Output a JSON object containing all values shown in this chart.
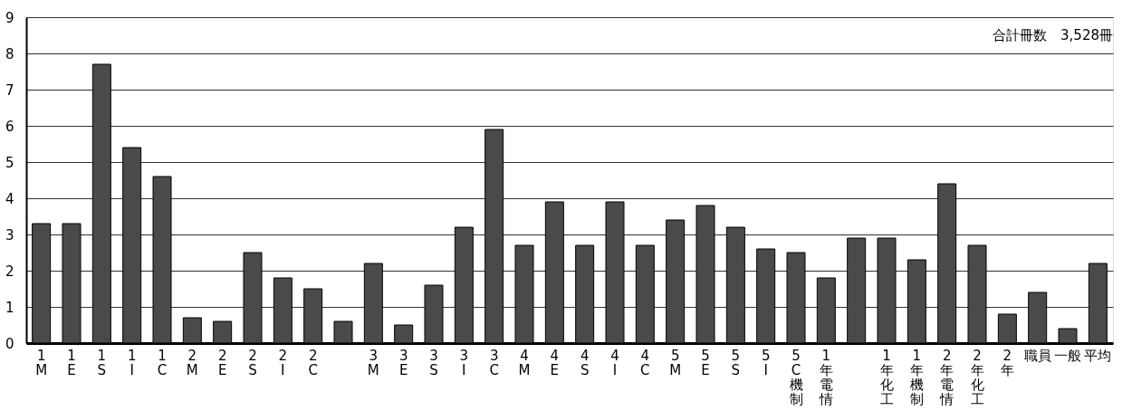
{
  "chart_data": {
    "type": "bar",
    "categories": [
      "1\nM",
      "1\nE",
      "1\nS",
      "1\nI",
      "1\nC",
      "2\nM",
      "2\nE",
      "2\nS",
      "2\nI",
      "2\nC",
      null,
      "3\nM",
      "3\nE",
      "3\nS",
      "3\nI",
      "3\nC",
      "4\nM",
      "4\nE",
      "4\nS",
      "4\nI",
      "4\nC",
      "5\nM",
      "5\nE",
      "5\nS",
      "5\nI",
      "5\nC\n機制",
      "1\n年電情",
      null,
      "1\n年化工",
      "1\n年機制",
      "2\n年電情",
      "2\n年化工",
      "2\n年",
      "職員",
      "一般",
      "平均"
    ],
    "values": [
      3.3,
      3.3,
      7.7,
      5.4,
      4.6,
      0.7,
      0.6,
      2.5,
      1.8,
      1.5,
      0.6,
      2.2,
      0.5,
      1.6,
      3.2,
      5.9,
      2.7,
      3.9,
      2.7,
      3.9,
      2.7,
      3.4,
      3.8,
      3.2,
      2.6,
      2.5,
      1.8,
      2.9,
      2.9,
      2.3,
      4.4,
      2.7,
      0.8,
      1.4,
      0.4,
      2.2
    ],
    "color": "#4a4a4a",
    "ylim": [
      0,
      9
    ],
    "yticks": [
      0,
      1,
      2,
      3,
      4,
      5,
      6,
      7,
      8,
      9
    ],
    "grid": "y",
    "annotations": [
      "合計冊数　3,528冊"
    ]
  }
}
